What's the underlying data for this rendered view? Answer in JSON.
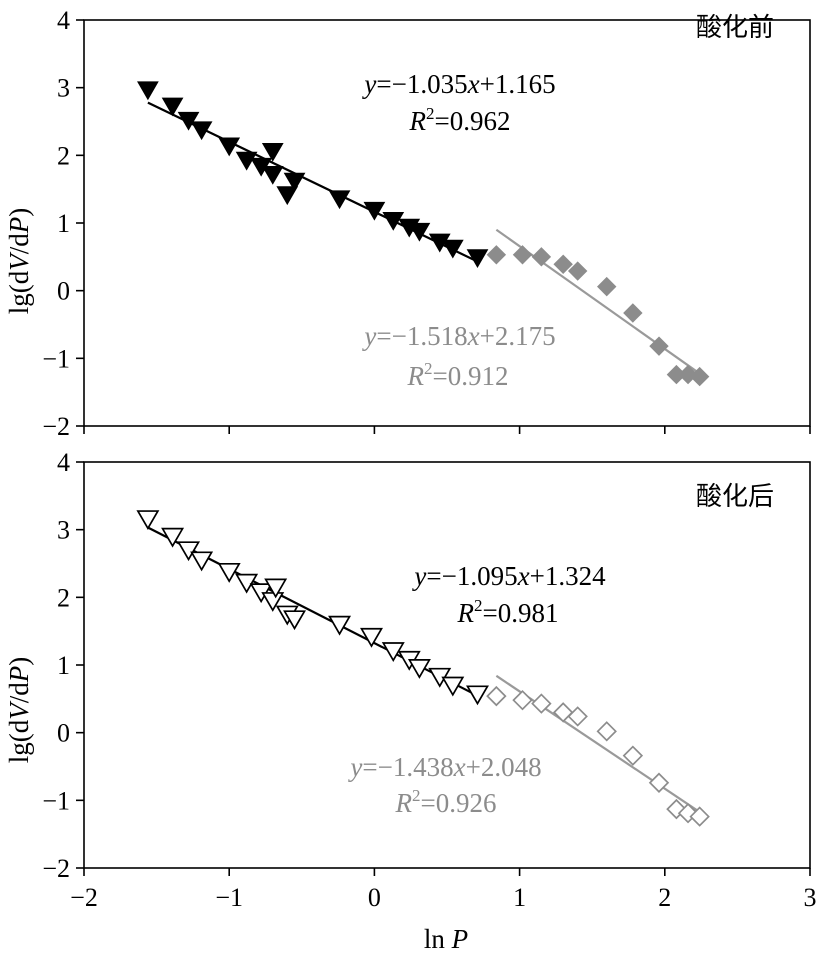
{
  "chart_data": [
    {
      "type": "scatter",
      "panel_label": "酸化前",
      "ylabel": "lg(dV/dP)",
      "xlim": [
        -2,
        3
      ],
      "ylim": [
        -2,
        4
      ],
      "yticks": [
        "4",
        "3",
        "2",
        "1",
        "0",
        "−1",
        "−2"
      ],
      "legend": "none",
      "grid": false,
      "series": [
        {
          "marker": "triangle-down-filled",
          "color": "#000000",
          "points": [
            [
              -1.56,
              2.97
            ],
            [
              -1.39,
              2.73
            ],
            [
              -1.28,
              2.52
            ],
            [
              -1.19,
              2.38
            ],
            [
              -1.0,
              2.14
            ],
            [
              -0.88,
              1.93
            ],
            [
              -0.78,
              1.84
            ],
            [
              -0.7,
              1.72
            ],
            [
              -0.7,
              2.06
            ],
            [
              -0.6,
              1.42
            ],
            [
              -0.55,
              1.62
            ],
            [
              -0.24,
              1.36
            ],
            [
              0.0,
              1.19
            ],
            [
              0.13,
              1.04
            ],
            [
              0.24,
              0.94
            ],
            [
              0.31,
              0.88
            ],
            [
              0.45,
              0.72
            ],
            [
              0.54,
              0.63
            ],
            [
              0.71,
              0.49
            ]
          ],
          "fit": {
            "x": [
              -1.56,
              0.71
            ]
          },
          "equation": {
            "y_prefix": "y",
            "mid": "=−1.035",
            "x_var": "x",
            "tail": "+1.165"
          },
          "r2": {
            "r": "R",
            "sup": "2",
            "value": "=0.962"
          }
        },
        {
          "marker": "diamond-filled",
          "color": "#8c8c8c",
          "points": [
            [
              0.84,
              0.53
            ],
            [
              1.02,
              0.53
            ],
            [
              1.15,
              0.5
            ],
            [
              1.3,
              0.39
            ],
            [
              1.4,
              0.29
            ],
            [
              1.6,
              0.06
            ],
            [
              1.78,
              -0.33
            ],
            [
              1.96,
              -0.82
            ],
            [
              2.08,
              -1.24
            ],
            [
              2.16,
              -1.24
            ],
            [
              2.24,
              -1.27
            ]
          ],
          "fit": {
            "x": [
              0.84,
              2.24
            ]
          },
          "equation": {
            "y_prefix": "y",
            "mid": "=−1.518",
            "x_var": "x",
            "tail": "+2.175"
          },
          "r2": {
            "r": "R",
            "sup": "2",
            "value": "=0.912"
          }
        }
      ]
    },
    {
      "type": "scatter",
      "panel_label": "酸化后",
      "ylabel": "lg(dV/dP)",
      "xlabel": "ln P",
      "xlim": [
        -2,
        3
      ],
      "ylim": [
        -2,
        4
      ],
      "xticks": [
        "−2",
        "−1",
        "0",
        "1",
        "2",
        "3"
      ],
      "yticks": [
        "4",
        "3",
        "2",
        "1",
        "0",
        "−1",
        "−2"
      ],
      "legend": "none",
      "grid": false,
      "series": [
        {
          "marker": "triangle-down-open",
          "color": "#000000",
          "points": [
            [
              -1.56,
              3.16
            ],
            [
              -1.39,
              2.9
            ],
            [
              -1.28,
              2.7
            ],
            [
              -1.19,
              2.55
            ],
            [
              -1.0,
              2.38
            ],
            [
              -0.88,
              2.22
            ],
            [
              -0.78,
              2.08
            ],
            [
              -0.7,
              1.95
            ],
            [
              -0.68,
              2.15
            ],
            [
              -0.6,
              1.75
            ],
            [
              -0.55,
              1.68
            ],
            [
              -0.24,
              1.6
            ],
            [
              -0.02,
              1.42
            ],
            [
              0.13,
              1.21
            ],
            [
              0.24,
              1.08
            ],
            [
              0.31,
              0.96
            ],
            [
              0.45,
              0.83
            ],
            [
              0.54,
              0.7
            ],
            [
              0.71,
              0.57
            ]
          ],
          "fit": {
            "x": [
              -1.56,
              0.71
            ]
          },
          "equation": {
            "y_prefix": "y",
            "mid": "=−1.095",
            "x_var": "x",
            "tail": "+1.324"
          },
          "r2": {
            "r": "R",
            "sup": "2",
            "value": "=0.981"
          }
        },
        {
          "marker": "diamond-open",
          "color": "#8c8c8c",
          "points": [
            [
              0.84,
              0.54
            ],
            [
              1.02,
              0.48
            ],
            [
              1.15,
              0.43
            ],
            [
              1.3,
              0.3
            ],
            [
              1.4,
              0.24
            ],
            [
              1.6,
              0.02
            ],
            [
              1.78,
              -0.34
            ],
            [
              1.96,
              -0.74
            ],
            [
              2.08,
              -1.13
            ],
            [
              2.16,
              -1.19
            ],
            [
              2.24,
              -1.24
            ]
          ],
          "fit": {
            "x": [
              0.84,
              2.24
            ]
          },
          "equation": {
            "y_prefix": "y",
            "mid": "=−1.438",
            "x_var": "x",
            "tail": "+2.048"
          },
          "r2": {
            "r": "R",
            "sup": "2",
            "value": "=0.926"
          }
        }
      ]
    }
  ]
}
